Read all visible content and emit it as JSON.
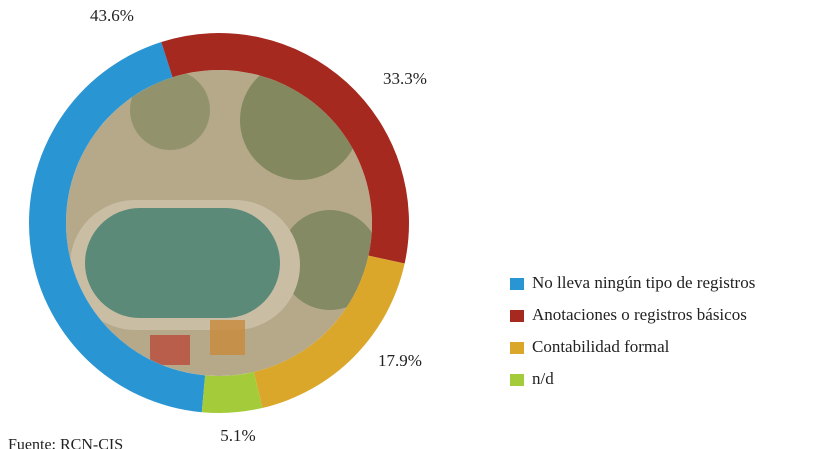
{
  "chart_data": {
    "type": "donut",
    "categories": [
      "No lleva ningún tipo de registros",
      "Anotaciones o registros básicos",
      "Contabilidad formal",
      "n/d"
    ],
    "values": [
      43.6,
      33.3,
      17.9,
      5.1
    ],
    "value_labels": [
      "43.6%",
      "33.3%",
      "17.9%",
      "5.1%"
    ],
    "colors": [
      "#2a95d3",
      "#a5291f",
      "#dba72a",
      "#a4cc3a"
    ],
    "source": "Fuente: RCN-CIS"
  }
}
